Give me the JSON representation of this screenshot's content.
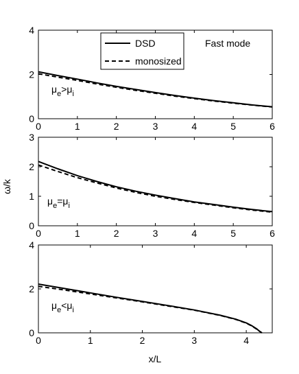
{
  "figure": {
    "ylabel": "ω/k",
    "xlabel": "x/L"
  },
  "legend": {
    "entries": [
      {
        "label": "DSD",
        "style": "solid"
      },
      {
        "label": "monosized",
        "style": "dashed"
      }
    ]
  },
  "annotations": {
    "mode_text": "Fast mode"
  },
  "chart_data": [
    {
      "type": "line",
      "panel_label": {
        "base": "μ",
        "sub1": "e",
        "rel": ">",
        "sub2": "i"
      },
      "xlim": [
        0,
        6
      ],
      "ylim": [
        0,
        4
      ],
      "xticks": [
        0,
        1,
        2,
        3,
        4,
        5,
        6
      ],
      "yticks": [
        0,
        2,
        4
      ],
      "grid": false,
      "series": [
        {
          "name": "DSD",
          "style": "solid",
          "x": [
            0,
            0.5,
            1,
            1.5,
            2,
            2.5,
            3,
            3.5,
            4,
            4.5,
            5,
            5.5,
            6
          ],
          "y": [
            2.12,
            1.95,
            1.79,
            1.62,
            1.46,
            1.32,
            1.18,
            1.05,
            0.93,
            0.82,
            0.72,
            0.62,
            0.54
          ]
        },
        {
          "name": "monosized",
          "style": "dashed",
          "x": [
            0,
            0.5,
            1,
            1.5,
            2,
            2.5,
            3,
            3.5,
            4,
            4.5,
            5,
            5.5,
            6
          ],
          "y": [
            2.03,
            1.88,
            1.73,
            1.57,
            1.42,
            1.28,
            1.15,
            1.02,
            0.91,
            0.8,
            0.7,
            0.61,
            0.53
          ]
        }
      ]
    },
    {
      "type": "line",
      "panel_label": {
        "base": "μ",
        "sub1": "e",
        "rel": "=",
        "sub2": "i"
      },
      "xlim": [
        0,
        6
      ],
      "ylim": [
        0,
        3
      ],
      "xticks": [
        0,
        1,
        2,
        3,
        4,
        5,
        6
      ],
      "yticks": [
        0,
        1,
        2,
        3
      ],
      "grid": false,
      "series": [
        {
          "name": "DSD",
          "style": "solid",
          "x": [
            0,
            0.5,
            1,
            1.5,
            2,
            2.5,
            3,
            3.5,
            4,
            4.5,
            5,
            5.5,
            6
          ],
          "y": [
            2.18,
            1.93,
            1.7,
            1.5,
            1.32,
            1.17,
            1.04,
            0.92,
            0.81,
            0.72,
            0.63,
            0.55,
            0.48
          ]
        },
        {
          "name": "monosized",
          "style": "dashed",
          "x": [
            0,
            0.5,
            1,
            1.5,
            2,
            2.5,
            3,
            3.5,
            4,
            4.5,
            5,
            5.5,
            6
          ],
          "y": [
            2.06,
            1.84,
            1.63,
            1.45,
            1.28,
            1.13,
            1.0,
            0.89,
            0.79,
            0.7,
            0.61,
            0.53,
            0.46
          ]
        }
      ]
    },
    {
      "type": "line",
      "panel_label": {
        "base": "μ",
        "sub1": "e",
        "rel": "<",
        "sub2": "i"
      },
      "xlim": [
        0,
        4.5
      ],
      "ylim": [
        0,
        4
      ],
      "xticks": [
        0,
        1,
        2,
        3,
        4
      ],
      "yticks": [
        0,
        2,
        4
      ],
      "grid": false,
      "series": [
        {
          "name": "DSD",
          "style": "solid",
          "x": [
            0,
            0.5,
            1,
            1.5,
            2,
            2.5,
            3,
            3.5,
            3.8,
            4.0,
            4.1,
            4.2,
            4.25,
            4.3
          ],
          "y": [
            2.22,
            2.02,
            1.82,
            1.62,
            1.43,
            1.24,
            1.04,
            0.8,
            0.62,
            0.45,
            0.33,
            0.18,
            0.08,
            0.0
          ]
        },
        {
          "name": "monosized",
          "style": "dashed",
          "x": [
            0,
            0.5,
            1,
            1.5,
            2,
            2.5,
            3,
            3.5,
            3.8,
            4.0,
            4.1,
            4.2,
            4.25,
            4.3
          ],
          "y": [
            2.12,
            1.95,
            1.77,
            1.59,
            1.41,
            1.22,
            1.03,
            0.79,
            0.61,
            0.44,
            0.32,
            0.17,
            0.08,
            0.0
          ]
        }
      ]
    }
  ]
}
